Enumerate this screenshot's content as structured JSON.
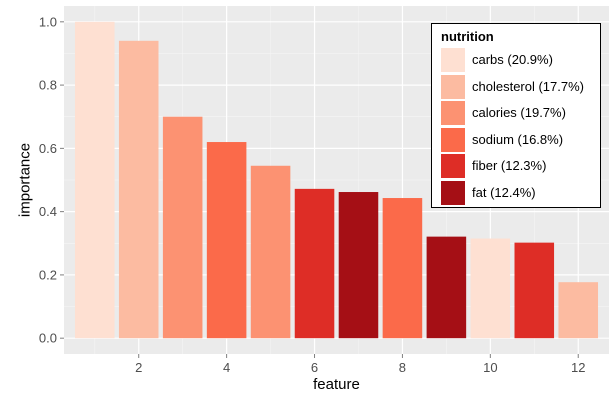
{
  "chart_data": {
    "type": "bar",
    "x": [
      1,
      2,
      3,
      4,
      5,
      6,
      7,
      8,
      9,
      10,
      11,
      12
    ],
    "values": [
      1.0,
      0.94,
      0.7,
      0.62,
      0.545,
      0.472,
      0.462,
      0.443,
      0.321,
      0.315,
      0.302,
      0.177
    ],
    "groups": [
      "carbs",
      "cholesterol",
      "calories",
      "sodium",
      "calories",
      "fiber",
      "fat",
      "sodium",
      "fat",
      "carbs",
      "fiber",
      "cholesterol"
    ],
    "xlabel": "feature",
    "ylabel": "importance",
    "xlim": [
      0.3,
      12.7
    ],
    "ylim": [
      -0.05,
      1.05
    ],
    "xticks": [
      2,
      4,
      6,
      8,
      10,
      12
    ],
    "yticks": [
      0.0,
      0.2,
      0.4,
      0.6,
      0.8,
      1.0
    ],
    "ytick_labels": [
      "0.0",
      "0.2",
      "0.4",
      "0.6",
      "0.8",
      "1.0"
    ],
    "grid": true,
    "legend": {
      "title": "nutrition",
      "placement": "top-right",
      "items": [
        {
          "key": "carbs",
          "label": "carbs (20.9%)",
          "color": "#FEE0D2"
        },
        {
          "key": "cholesterol",
          "label": "cholesterol (17.7%)",
          "color": "#FCBBA1"
        },
        {
          "key": "calories",
          "label": "calories (19.7%)",
          "color": "#FC9272"
        },
        {
          "key": "sodium",
          "label": "sodium (16.8%)",
          "color": "#FB6A4A"
        },
        {
          "key": "fiber",
          "label": "fiber (12.3%)",
          "color": "#DE2D26"
        },
        {
          "key": "fat",
          "label": "fat (12.4%)",
          "color": "#A50F15"
        }
      ]
    },
    "panel_color": "#EBEBEB",
    "grid_color": "#FFFFFF"
  }
}
